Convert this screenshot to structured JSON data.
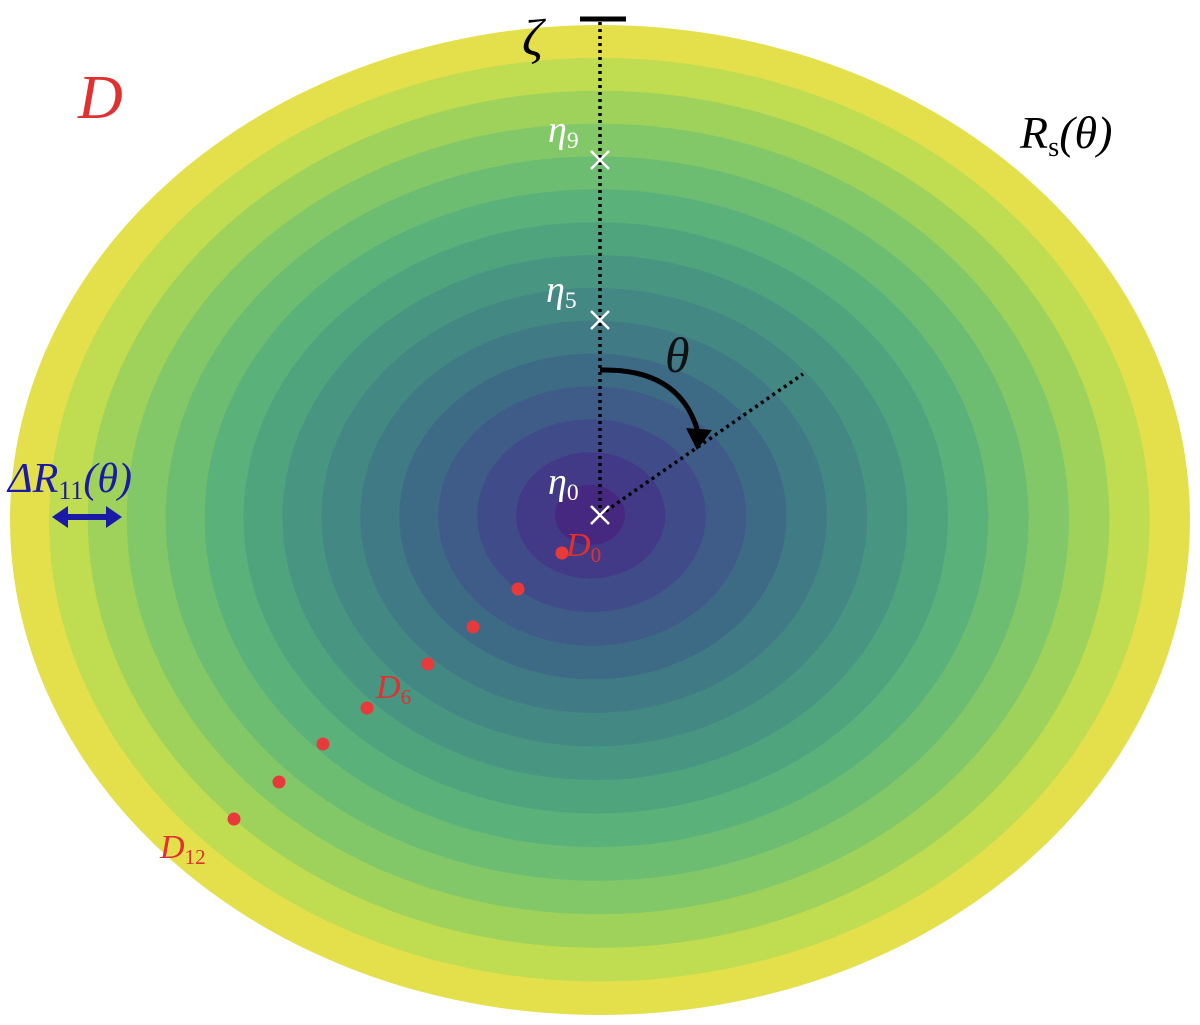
{
  "labels": {
    "zeta": "ζ",
    "domain": "D",
    "radius": {
      "base": "R",
      "sub": "s",
      "arg": "(θ)"
    },
    "eta9": {
      "base": "η",
      "sub": "9"
    },
    "eta5": {
      "base": "η",
      "sub": "5"
    },
    "eta0": {
      "base": "η",
      "sub": "0"
    },
    "theta": "θ",
    "ring_width": {
      "base": "ΔR",
      "sub": "11",
      "arg": "(θ)"
    },
    "d0": {
      "base": "D",
      "sub": "0"
    },
    "d6": {
      "base": "D",
      "sub": "6"
    },
    "d12": {
      "base": "D",
      "sub": "12"
    }
  }
}
